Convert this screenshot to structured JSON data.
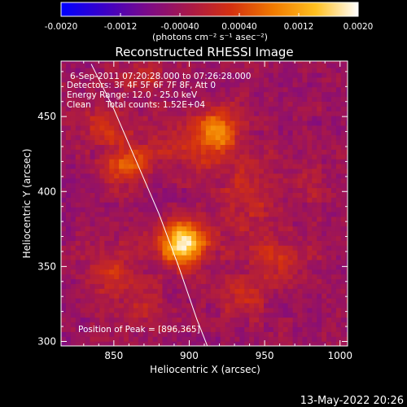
{
  "chart_data": {
    "type": "heatmap",
    "title": "Reconstructed RHESSI Image",
    "xlabel": "Heliocentric X (arcsec)",
    "ylabel": "Heliocentric Y (arcsec)",
    "xlim": [
      815,
      1005
    ],
    "ylim": [
      297,
      487
    ],
    "x_ticks": [
      850,
      900,
      950,
      1000
    ],
    "y_ticks": [
      300,
      350,
      400,
      450
    ],
    "colorbar": {
      "range": [
        -0.002,
        0.002
      ],
      "tick_values": [
        -0.002,
        -0.0012,
        -0.0004,
        0.0004,
        0.0012,
        0.002
      ],
      "tick_labels": [
        "-0.0020",
        "-0.0012",
        "-0.00040",
        "0.00040",
        "0.0012",
        "0.0020"
      ],
      "unit_label": "(photons cm⁻² s⁻¹ asec⁻²)",
      "colors": [
        "#0000ff",
        "#3a00c8",
        "#7a0a8a",
        "#a8184a",
        "#d43010",
        "#f07a00",
        "#ffc020",
        "#ffffff"
      ]
    },
    "annotations": {
      "time": "6-Sep-2011 07:20:28.000 to 07:26:28.000",
      "detectors": "Detectors: 3F 4F 5F 6F 7F 8F, Att 0",
      "energy": "Energy Range: 12.0 - 25.0 keV",
      "algorithm": "Clean",
      "counts": "Total counts: 1.52E+04",
      "peak": "Position of Peak = [896,365]"
    },
    "peak": {
      "x": 896,
      "y": 365
    },
    "limb_curve": [
      [
        835,
        485
      ],
      [
        850,
        455
      ],
      [
        865,
        420
      ],
      [
        880,
        385
      ],
      [
        893,
        350
      ],
      [
        905,
        315
      ],
      [
        912,
        297
      ]
    ],
    "sources": [
      {
        "x": 896,
        "y": 366,
        "sx": 11,
        "sy": 10,
        "amp": 0.0022
      },
      {
        "x": 918,
        "y": 442,
        "sx": 9,
        "sy": 11,
        "amp": 0.0011
      },
      {
        "x": 858,
        "y": 418,
        "sx": 11,
        "sy": 9,
        "amp": 0.001
      },
      {
        "x": 845,
        "y": 445,
        "sx": 12,
        "sy": 10,
        "amp": 0.0006
      },
      {
        "x": 905,
        "y": 430,
        "sx": 20,
        "sy": 12,
        "amp": 0.0006
      },
      {
        "x": 940,
        "y": 395,
        "sx": 15,
        "sy": 22,
        "amp": 0.0005
      },
      {
        "x": 960,
        "y": 355,
        "sx": 14,
        "sy": 10,
        "amp": 0.0005
      },
      {
        "x": 935,
        "y": 330,
        "sx": 12,
        "sy": 10,
        "amp": 0.0005
      },
      {
        "x": 850,
        "y": 345,
        "sx": 12,
        "sy": 12,
        "amp": 0.0007
      },
      {
        "x": 870,
        "y": 325,
        "sx": 9,
        "sy": 9,
        "amp": 0.0004
      },
      {
        "x": 868,
        "y": 475,
        "sx": 12,
        "sy": 8,
        "amp": 0.0005
      },
      {
        "x": 985,
        "y": 405,
        "sx": 8,
        "sy": 9,
        "amp": 0.0003
      }
    ]
  },
  "footer": {
    "timestamp": "13-May-2022 20:26"
  }
}
